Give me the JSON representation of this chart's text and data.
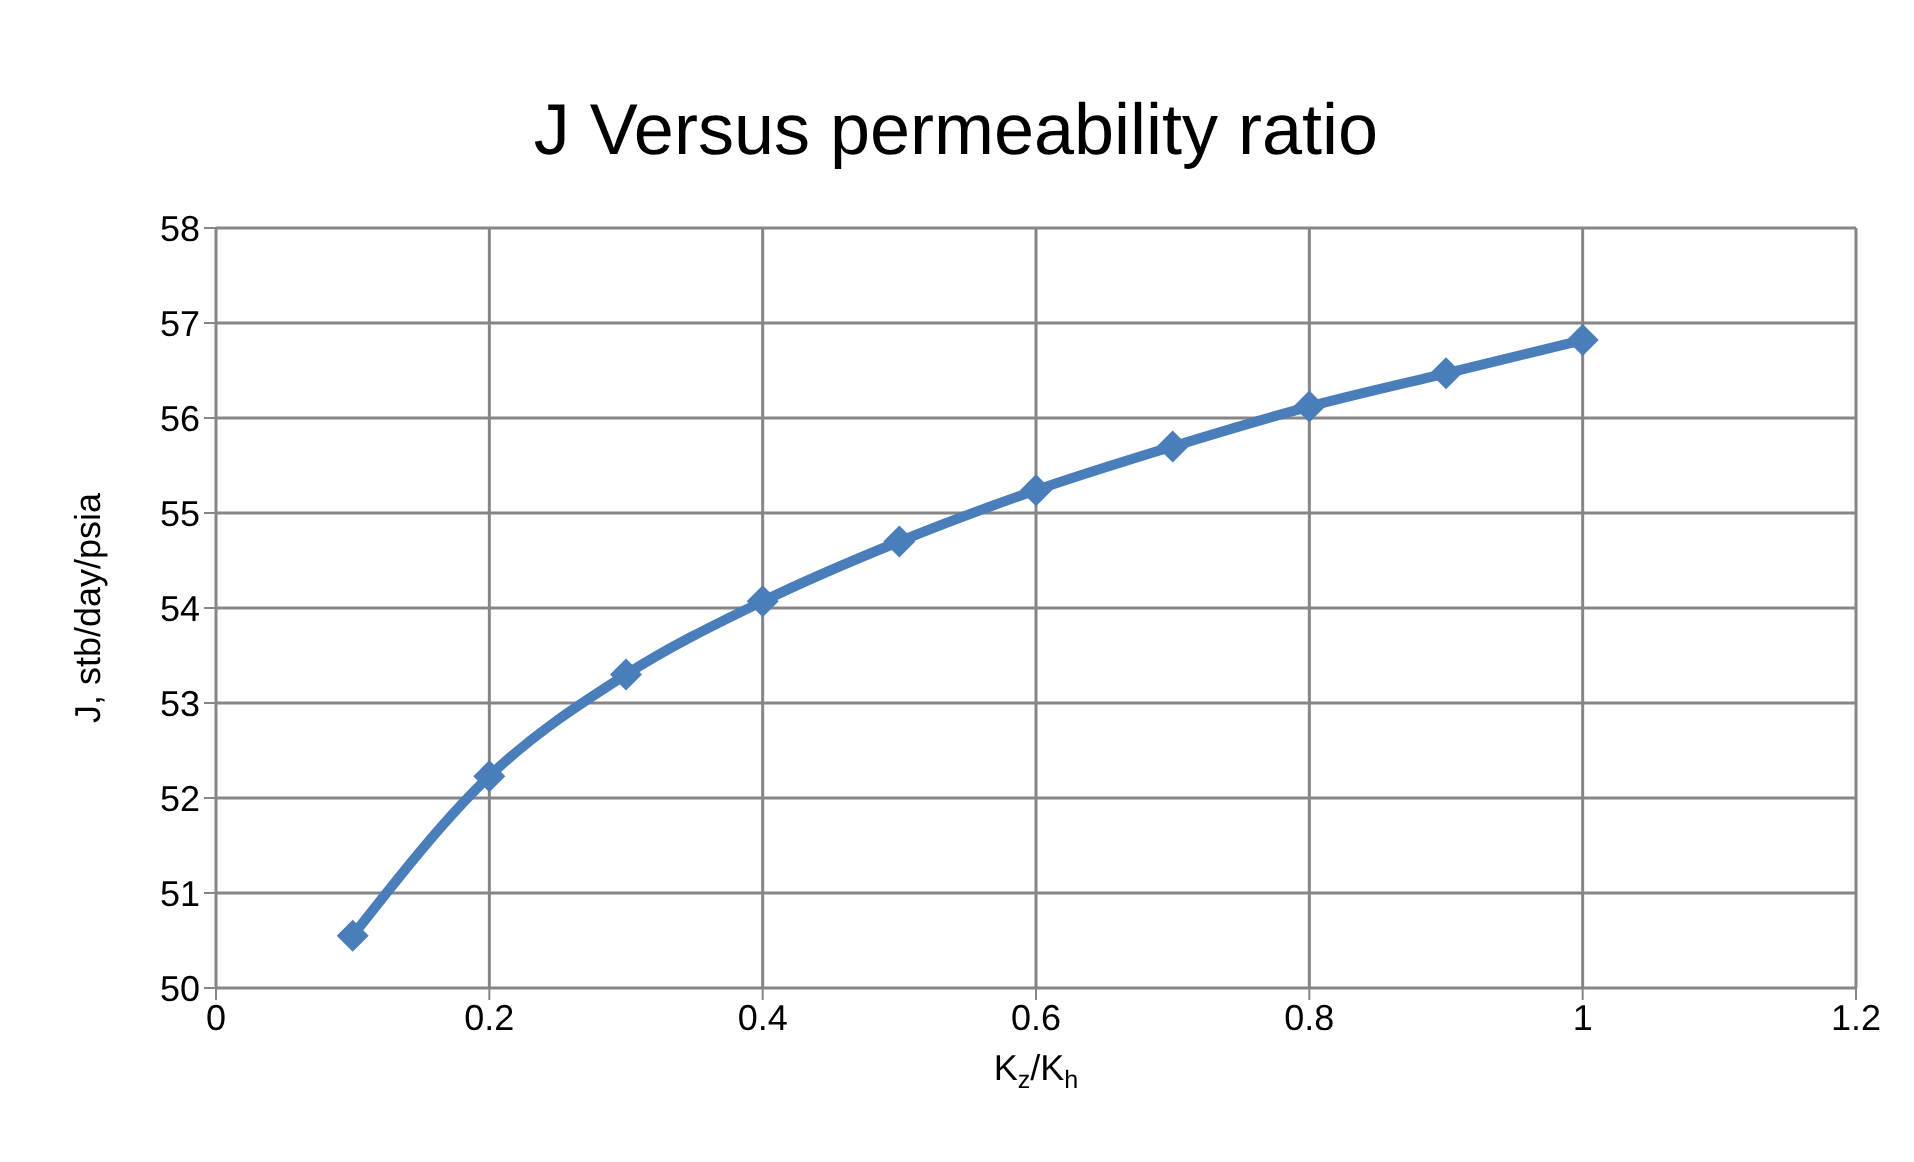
{
  "chart_data": {
    "type": "line",
    "title": "J Versus permeability ratio",
    "xlabel": "K$_{z}$/K$_{h}$",
    "ylabel": "J, stb/day/psia",
    "x": [
      0.1,
      0.2,
      0.3,
      0.4,
      0.5,
      0.6,
      0.7,
      0.8,
      0.9,
      1
    ],
    "series": [
      {
        "color": "#4a7ebb",
        "values": [
          50.55,
          52.23,
          53.3,
          54.07,
          54.7,
          55.24,
          55.7,
          56.12,
          56.47,
          56.82
        ]
      }
    ],
    "xlim": [
      0,
      1.2
    ],
    "xticks": [
      0,
      0.2,
      0.4,
      0.6,
      0.8,
      1,
      1.2
    ],
    "ylim": [
      50,
      58
    ],
    "yticks": [
      50,
      51,
      52,
      53,
      54,
      55,
      56,
      57,
      58
    ],
    "grid": true,
    "legend": false,
    "marker": "diamond",
    "line_style": "solid"
  }
}
